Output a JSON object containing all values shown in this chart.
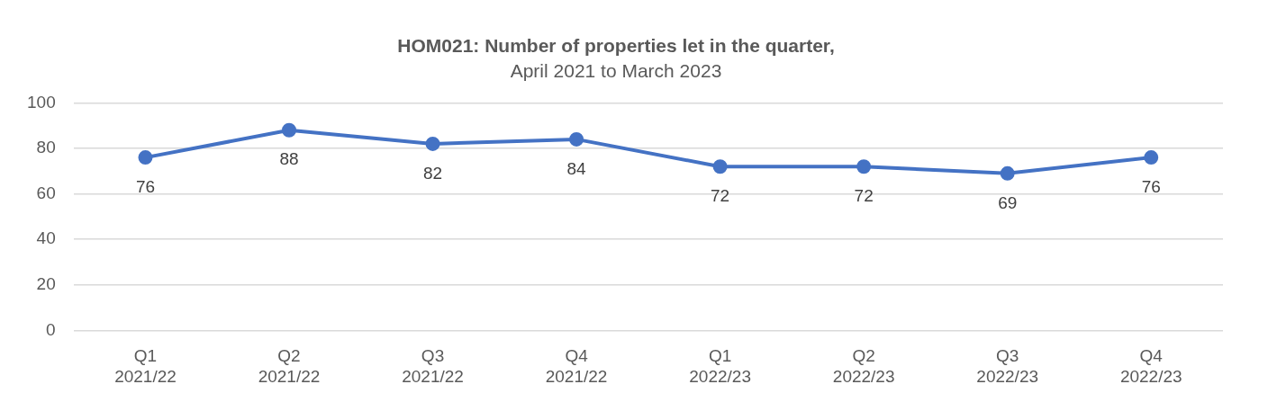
{
  "chart_data": {
    "type": "line",
    "title": "HOM021: Number of properties let in the quarter,",
    "subtitle": "April 2021 to March 2023",
    "categories": [
      "Q1 2021/22",
      "Q2 2021/22",
      "Q3 2021/22",
      "Q4 2021/22",
      "Q1 2022/23",
      "Q2 2022/23",
      "Q3 2022/23",
      "Q4 2022/23"
    ],
    "series": [
      {
        "color": "#4472c4",
        "values": [
          76,
          88,
          82,
          84,
          72,
          72,
          69,
          76
        ]
      }
    ],
    "ylim": [
      0,
      100
    ],
    "yticks": [
      0,
      20,
      40,
      60,
      80,
      100
    ],
    "grid": "y",
    "legend": false,
    "marker": "circle",
    "line_style": "solid",
    "data_labels": true
  }
}
